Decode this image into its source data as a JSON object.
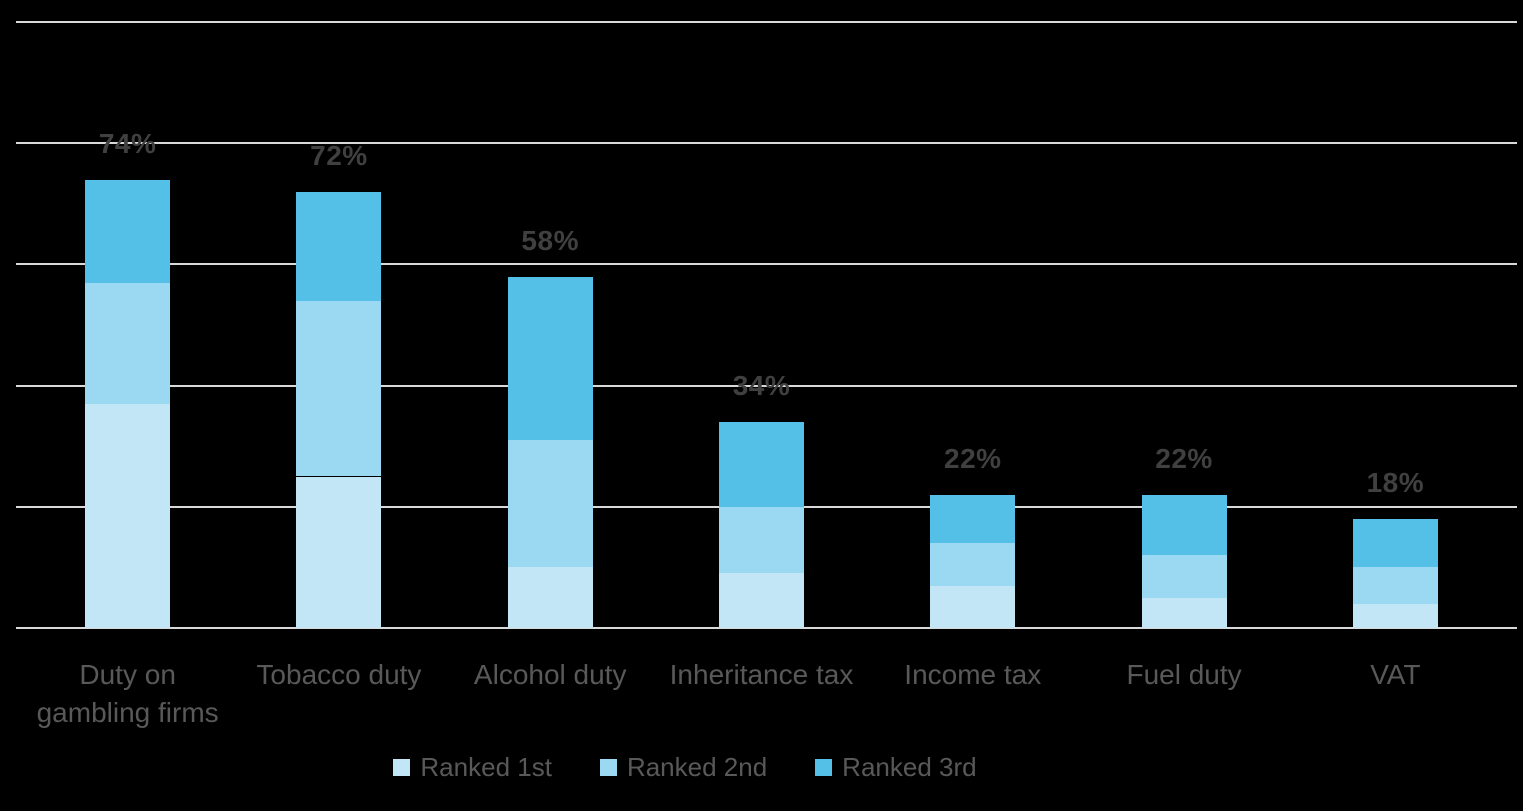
{
  "colors": {
    "background": "#000000",
    "gridline": "#D9D9D9",
    "axis_line": "#D9D9D9",
    "data_label_text": "#404040",
    "category_label_text": "#595959",
    "legend_label_text": "#595959",
    "ranked_1st": "#C2E6F5",
    "ranked_2nd": "#9BD9F2",
    "ranked_3rd": "#54C0E8"
  },
  "chart_data": {
    "type": "bar",
    "stacked": true,
    "orientation": "vertical",
    "title": "",
    "xlabel": "",
    "ylabel": "",
    "ylim": [
      0,
      100
    ],
    "gridline_interval": 20,
    "grid": true,
    "y_axis_labels_visible": false,
    "legend_position": "bottom",
    "categories": [
      "Duty on gambling firms",
      "Tobacco duty",
      "Alcohol duty",
      "Inheritance tax",
      "Income tax",
      "Fuel duty",
      "VAT"
    ],
    "series": [
      {
        "name": "Ranked 1st",
        "color": "#C2E6F5",
        "values": [
          37,
          25,
          10,
          9,
          7,
          5,
          4
        ]
      },
      {
        "name": "Ranked 2nd",
        "color": "#9BD9F2",
        "values": [
          20,
          29,
          21,
          11,
          7,
          7,
          6
        ]
      },
      {
        "name": "Ranked 3rd",
        "color": "#54C0E8",
        "values": [
          17,
          18,
          27,
          14,
          8,
          10,
          8
        ]
      }
    ],
    "totals": [
      74,
      72,
      58,
      34,
      22,
      22,
      18
    ],
    "total_labels": [
      "74%",
      "72%",
      "58%",
      "34%",
      "22%",
      "22%",
      "18%"
    ],
    "legend": [
      "Ranked 1st",
      "Ranked 2nd",
      "Ranked 3rd"
    ]
  }
}
